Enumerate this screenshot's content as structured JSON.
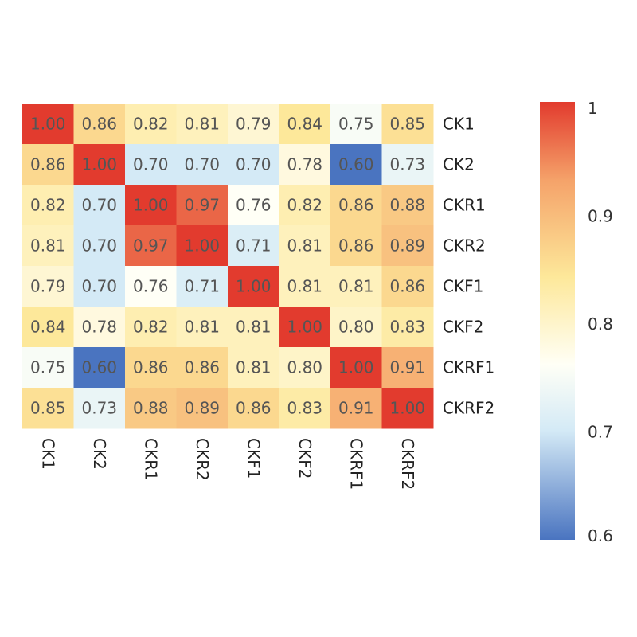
{
  "chart_data": {
    "type": "heatmap",
    "rows": [
      "CK1",
      "CK2",
      "CKR1",
      "CKR2",
      "CKF1",
      "CKF2",
      "CKRF1",
      "CKRF2"
    ],
    "columns": [
      "CK1",
      "CK2",
      "CKR1",
      "CKR2",
      "CKF1",
      "CKF2",
      "CKRF1",
      "CKRF2"
    ],
    "values": [
      [
        1.0,
        0.86,
        0.82,
        0.81,
        0.79,
        0.84,
        0.75,
        0.85
      ],
      [
        0.86,
        1.0,
        0.7,
        0.7,
        0.7,
        0.78,
        0.6,
        0.73
      ],
      [
        0.82,
        0.7,
        1.0,
        0.97,
        0.76,
        0.82,
        0.86,
        0.88
      ],
      [
        0.81,
        0.7,
        0.97,
        1.0,
        0.71,
        0.81,
        0.86,
        0.89
      ],
      [
        0.79,
        0.7,
        0.76,
        0.71,
        1.0,
        0.81,
        0.81,
        0.86
      ],
      [
        0.84,
        0.78,
        0.82,
        0.81,
        0.81,
        1.0,
        0.8,
        0.83
      ],
      [
        0.75,
        0.6,
        0.86,
        0.86,
        0.81,
        0.8,
        1.0,
        0.91
      ],
      [
        0.85,
        0.73,
        0.88,
        0.89,
        0.86,
        0.83,
        0.91,
        1.0
      ]
    ],
    "value_labels": [
      [
        "1.00",
        "0.86",
        "0.82",
        "0.81",
        "0.79",
        "0.84",
        "0.75",
        "0.85"
      ],
      [
        "0.86",
        "1.00",
        "0.70",
        "0.70",
        "0.70",
        "0.78",
        "0.60",
        "0.73"
      ],
      [
        "0.82",
        "0.70",
        "1.00",
        "0.97",
        "0.76",
        "0.82",
        "0.86",
        "0.88"
      ],
      [
        "0.81",
        "0.70",
        "0.97",
        "1.00",
        "0.71",
        "0.81",
        "0.86",
        "0.89"
      ],
      [
        "0.79",
        "0.70",
        "0.76",
        "0.71",
        "1.00",
        "0.81",
        "0.81",
        "0.86"
      ],
      [
        "0.84",
        "0.78",
        "0.82",
        "0.81",
        "0.81",
        "1.00",
        "0.80",
        "0.83"
      ],
      [
        "0.75",
        "0.60",
        "0.86",
        "0.86",
        "0.81",
        "0.80",
        "1.00",
        "0.91"
      ],
      [
        "0.85",
        "0.73",
        "0.88",
        "0.89",
        "0.86",
        "0.83",
        "0.91",
        "1.00"
      ]
    ],
    "colorbar": {
      "range": [
        0.6,
        1.0
      ],
      "ticks": [
        {
          "value": 1.0,
          "label": "1"
        },
        {
          "value": 0.9,
          "label": "0.9"
        },
        {
          "value": 0.8,
          "label": "0.8"
        },
        {
          "value": 0.7,
          "label": "0.7"
        },
        {
          "value": 0.6,
          "label": "0.6"
        }
      ],
      "colors": {
        "low": "#4a74c0",
        "mid_low": "#d4eaf6",
        "mid": "#fffff6",
        "mid_high": "#fde89a",
        "high_mid": "#f5a36a",
        "high": "#e23b2e"
      }
    },
    "title": "",
    "xlabel": "",
    "ylabel": "",
    "legend_position": "right",
    "grid": false
  }
}
